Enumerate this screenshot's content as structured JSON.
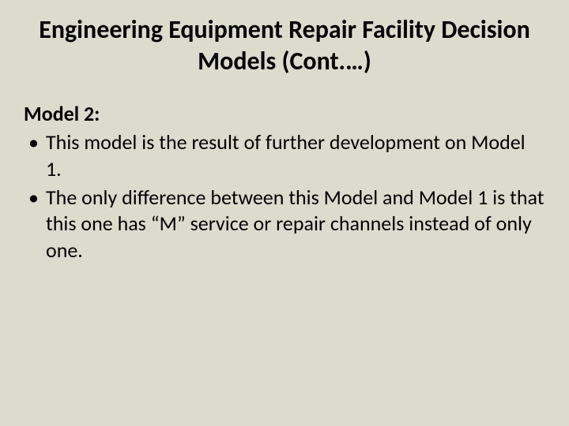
{
  "slide": {
    "title": "Engineering Equipment Repair Facility Decision Models (Cont.…)",
    "subtitle": "Model 2:",
    "bullets": [
      "This model is the result of further development on Model 1.",
      "The only difference between this Model and Model 1 is that this one has “M” service or repair channels instead of only one."
    ],
    "background_color": "#dddace",
    "text_color": "#000000",
    "title_fontsize": 32,
    "subtitle_fontsize": 26,
    "body_fontsize": 26,
    "font_family": "Calibri"
  }
}
